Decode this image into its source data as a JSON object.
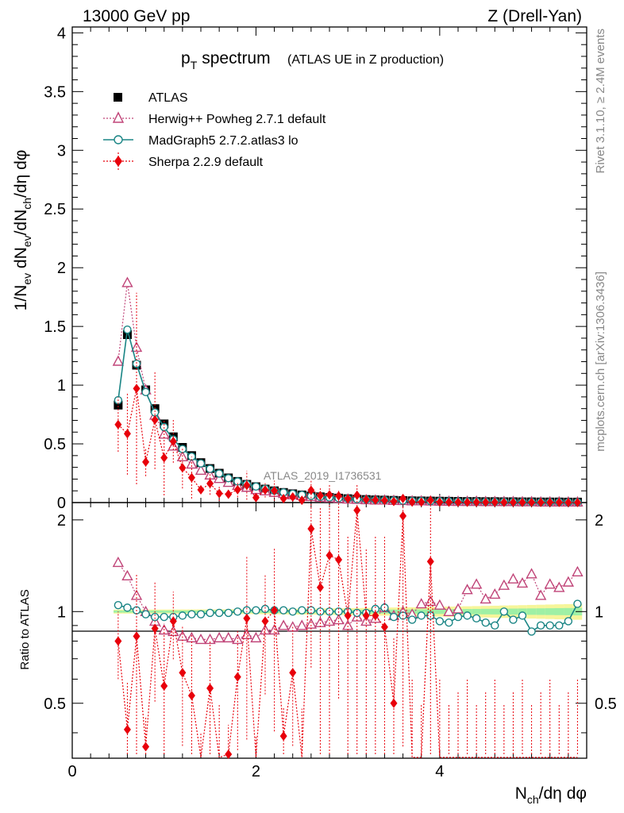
{
  "header": {
    "energy_label": "13000 GeV pp",
    "process_label": "Z (Drell-Yan)"
  },
  "side_labels": {
    "rivet": "Rivet 3.1.10, ≥ 2.4M events",
    "mcplots": "mcplots.cern.ch [arXiv:1306.3436]"
  },
  "chart_data": {
    "type": "scatter",
    "title_main": "p",
    "title_sub": "T",
    "title_rest": "spectrum",
    "title_paren": "(ATLAS UE in Z production)",
    "watermark": "ATLAS_2019_I1736531",
    "ylabel_parts": [
      "1/N",
      "ev",
      " dN",
      "ev",
      "/dN",
      "ch",
      "/dη dφ"
    ],
    "xlabel_parts": [
      "N",
      "ch",
      "/dη dφ"
    ],
    "ratio_ylabel": "Ratio to ATLAS",
    "xlim": [
      0,
      5.6
    ],
    "ylim_main": [
      0,
      4.05
    ],
    "ylim_ratio": [
      0.33,
      2.28
    ],
    "x_ticks": [
      "0",
      "2",
      "4"
    ],
    "y_ticks_main": [
      "0",
      "0.5",
      "1",
      "1.5",
      "2",
      "2.5",
      "3",
      "3.5",
      "4"
    ],
    "y_ticks_ratio": [
      "0.5",
      "1",
      "2"
    ],
    "y_ticks_ratio_right": [
      "0.5",
      "1",
      "2"
    ],
    "x": [
      0.5,
      0.6,
      0.7,
      0.8,
      0.9,
      1.0,
      1.1,
      1.2,
      1.3,
      1.4,
      1.5,
      1.6,
      1.7,
      1.8,
      1.9,
      2.0,
      2.1,
      2.2,
      2.3,
      2.4,
      2.5,
      2.6,
      2.7,
      2.8,
      2.9,
      3.0,
      3.1,
      3.2,
      3.3,
      3.4,
      3.5,
      3.6,
      3.7,
      3.8,
      3.9,
      4.0,
      4.1,
      4.2,
      4.3,
      4.4,
      4.5,
      4.6,
      4.7,
      4.8,
      4.9,
      5.0,
      5.1,
      5.2,
      5.3,
      5.4,
      5.5
    ],
    "series": [
      {
        "name": "ATLAS",
        "marker": "square",
        "color": "#000000",
        "values": [
          0.83,
          1.43,
          1.17,
          0.96,
          0.8,
          0.67,
          0.56,
          0.47,
          0.4,
          0.34,
          0.29,
          0.25,
          0.21,
          0.18,
          0.155,
          0.135,
          0.115,
          0.1,
          0.086,
          0.075,
          0.065,
          0.056,
          0.049,
          0.043,
          0.038,
          0.033,
          0.029,
          0.026,
          0.023,
          0.021,
          0.019,
          0.017,
          0.015,
          0.014,
          0.013,
          0.012,
          0.011,
          0.01,
          0.009,
          0.009,
          0.008,
          0.008,
          0.007,
          0.007,
          0.006,
          0.006,
          0.005,
          0.005,
          0.005,
          0.004,
          0.004
        ]
      },
      {
        "name": "Herwig++ Powheg 2.7.1 default",
        "marker": "open-triangle",
        "color": "#c04478",
        "ratio": [
          1.45,
          1.31,
          1.13,
          1.0,
          0.93,
          0.87,
          0.86,
          0.83,
          0.82,
          0.81,
          0.81,
          0.82,
          0.82,
          0.81,
          0.84,
          0.82,
          0.87,
          0.87,
          0.9,
          0.89,
          0.9,
          0.91,
          0.92,
          0.93,
          0.94,
          0.9,
          0.96,
          0.93,
          0.95,
          1.03,
          0.97,
          1.0,
          0.98,
          1.06,
          1.08,
          1.05,
          1.0,
          1.02,
          1.18,
          1.23,
          1.1,
          1.14,
          1.22,
          1.28,
          1.24,
          1.33,
          1.13,
          1.23,
          1.2,
          1.25,
          1.35
        ]
      },
      {
        "name": "MadGraph5 2.7.2.atlas3 lo",
        "marker": "open-circle",
        "color": "#1a8585",
        "ratio": [
          1.05,
          1.03,
          1.01,
          0.98,
          0.96,
          0.96,
          0.96,
          0.97,
          0.98,
          0.98,
          0.99,
          0.99,
          0.99,
          1.0,
          1.01,
          1.01,
          1.02,
          1.01,
          1.01,
          1.0,
          1.01,
          1.01,
          1.0,
          1.0,
          1.0,
          1.0,
          0.99,
          0.99,
          1.02,
          1.03,
          0.96,
          0.97,
          0.94,
          0.97,
          0.97,
          0.93,
          0.92,
          0.96,
          0.97,
          0.95,
          0.92,
          0.9,
          1.0,
          0.94,
          0.97,
          0.86,
          0.9,
          0.9,
          0.9,
          0.93,
          1.06
        ]
      },
      {
        "name": "Sherpa 2.2.9 default",
        "marker": "filled-diamond",
        "color": "#e8000b",
        "ratio": [
          0.8,
          0.41,
          0.83,
          0.36,
          0.88,
          0.57,
          0.93,
          0.63,
          0.53,
          0.32,
          0.56,
          0.31,
          0.34,
          0.61,
          0.95,
          0.31,
          0.93,
          1.01,
          0.39,
          0.63,
          0.3,
          1.87,
          1.2,
          1.53,
          1.48,
          0.97,
          2.15,
          0.97,
          0.97,
          0.89,
          0.5,
          2.06,
          0.3,
          0.3,
          1.46,
          0.3,
          0.3,
          0.3,
          0.3,
          0.3,
          0.3,
          0.3,
          0.3,
          0.3,
          0.3,
          0.3,
          0.3,
          0.3,
          0.3,
          0.3,
          0.3
        ]
      }
    ]
  }
}
